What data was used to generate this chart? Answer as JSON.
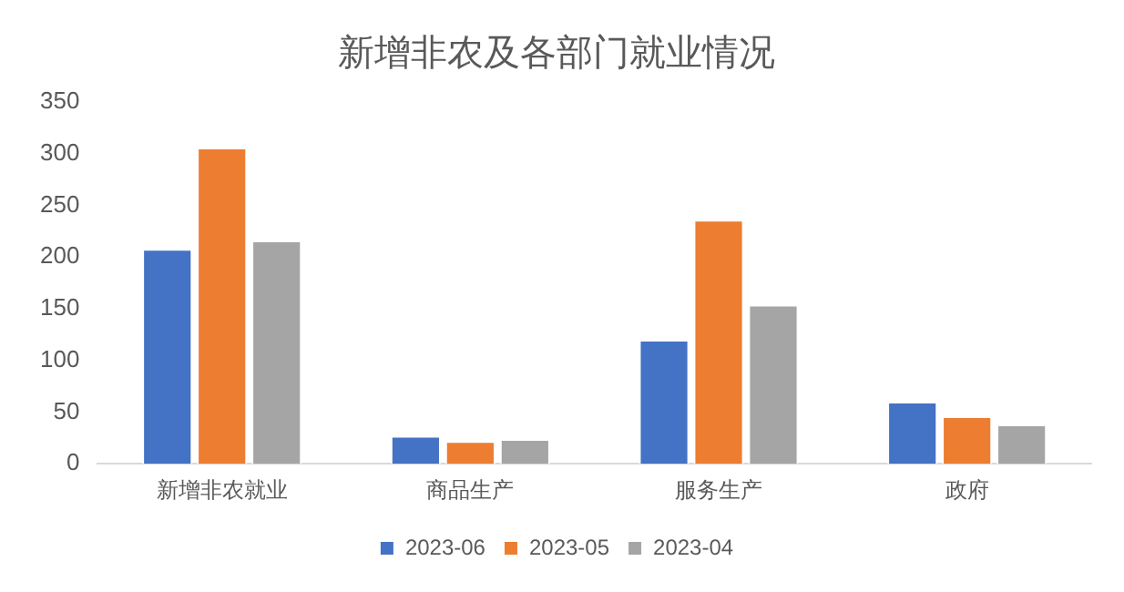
{
  "chart_data": {
    "type": "bar",
    "title": "新增非农及各部门就业情况",
    "categories": [
      "新增非农就业",
      "商品生产",
      "服务生产",
      "政府"
    ],
    "series": [
      {
        "name": "2023-06",
        "color": "#4472c4",
        "values": [
          208,
          27,
          120,
          60
        ]
      },
      {
        "name": "2023-05",
        "color": "#ed7d31",
        "values": [
          306,
          22,
          236,
          46
        ]
      },
      {
        "name": "2023-04",
        "color": "#a5a5a5",
        "values": [
          216,
          24,
          154,
          38
        ]
      }
    ],
    "ylim": [
      0,
      350
    ],
    "yticks": [
      0,
      50,
      100,
      150,
      200,
      250,
      300,
      350
    ],
    "legend": "bottom"
  }
}
